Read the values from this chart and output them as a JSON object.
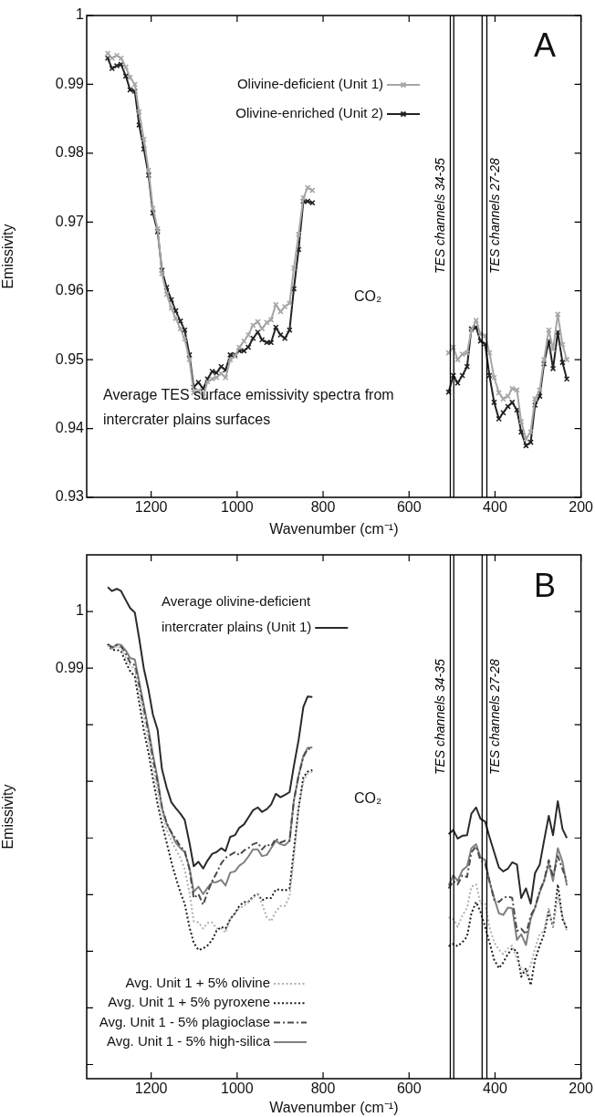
{
  "chart_data": [
    {
      "type": "line",
      "xlabel": "Wavenumber (cm⁻¹)",
      "ylabel": "Emissivity",
      "x": [
        1301,
        1291,
        1280,
        1270,
        1259,
        1249,
        1238,
        1228,
        1217,
        1206,
        1196,
        1185,
        1175,
        1164,
        1153,
        1143,
        1132,
        1122,
        1111,
        1101,
        1090,
        1079,
        1069,
        1058,
        1048,
        1037,
        1027,
        1016,
        1005,
        995,
        984,
        974,
        963,
        952,
        942,
        931,
        921,
        910,
        899,
        889,
        878,
        868,
        857,
        846,
        836,
        825,
        660,
        508,
        497,
        487,
        476,
        465,
        455,
        444,
        434,
        423,
        413,
        402,
        391,
        381,
        370,
        360,
        349,
        339,
        328,
        317,
        307,
        296,
        286,
        275,
        265,
        254,
        243,
        233
      ],
      "xlim": [
        1350,
        200
      ],
      "xticks": [
        1200,
        1000,
        800,
        600,
        400,
        200
      ],
      "ylim": [
        0.93,
        1
      ],
      "yticks": [
        0.93,
        0.94,
        0.95,
        0.96,
        0.97,
        0.98,
        0.99,
        1
      ],
      "marker": "cross",
      "legend": "top",
      "ref_lines": [
        {
          "axis": "x",
          "value": 504,
          "label": "TES channels 34-35"
        },
        {
          "axis": "x",
          "value": 496
        },
        {
          "axis": "x",
          "value": 430
        },
        {
          "axis": "x",
          "value": 419,
          "label": "TES channels 27-28"
        }
      ],
      "series": [
        {
          "name": "Olivine-deficient (Unit 1)",
          "color": "#a6a6a6",
          "values": [
            0.9945,
            0.9938,
            0.9942,
            0.9938,
            0.9925,
            0.991,
            0.99,
            0.986,
            0.982,
            0.9775,
            0.972,
            0.969,
            0.9625,
            0.9595,
            0.9575,
            0.956,
            0.9545,
            0.953,
            0.95,
            0.9452,
            0.9455,
            0.9446,
            0.9468,
            0.9472,
            0.9474,
            0.948,
            0.9474,
            0.95,
            0.9505,
            0.9518,
            0.9527,
            0.9536,
            0.955,
            0.9555,
            0.9545,
            0.9554,
            0.9558,
            0.958,
            0.957,
            0.9577,
            0.9582,
            0.9633,
            0.9682,
            0.9735,
            0.975,
            0.9746,
            null,
            0.951,
            0.9518,
            0.95,
            0.9508,
            0.951,
            0.9543,
            0.9557,
            0.9537,
            0.9535,
            0.951,
            0.9474,
            0.9452,
            0.9443,
            0.9447,
            0.9458,
            0.9456,
            0.941,
            0.9385,
            0.9395,
            0.9443,
            0.9456,
            0.95,
            0.9543,
            0.9515,
            0.9566,
            0.9522,
            0.95
          ]
        },
        {
          "name": "Olivine-enriched (Unit 2)",
          "color": "#222222",
          "values": [
            0.9938,
            0.9923,
            0.9927,
            0.9929,
            0.9912,
            0.9892,
            0.989,
            0.9841,
            0.9806,
            0.9768,
            0.9713,
            0.9686,
            0.963,
            0.9605,
            0.9587,
            0.9571,
            0.9556,
            0.9543,
            0.9507,
            0.946,
            0.9467,
            0.9458,
            0.9472,
            0.9483,
            0.9481,
            0.949,
            0.9485,
            0.9507,
            0.9507,
            0.9513,
            0.9513,
            0.9518,
            0.9531,
            0.954,
            0.9529,
            0.9525,
            0.9525,
            0.9547,
            0.9536,
            0.9531,
            0.9543,
            0.9603,
            0.966,
            0.973,
            0.973,
            0.9728,
            null,
            0.9453,
            0.9477,
            0.9466,
            0.9477,
            0.949,
            0.9545,
            0.9547,
            0.9527,
            0.9523,
            0.9477,
            0.9438,
            0.9414,
            0.9423,
            0.9432,
            0.9438,
            0.9427,
            0.9395,
            0.9375,
            0.938,
            0.9434,
            0.9447,
            0.9494,
            0.9527,
            0.9487,
            0.954,
            0.9496,
            0.9472
          ]
        }
      ],
      "annotations": [
        "A",
        "CO₂",
        "Average TES surface emissivity spectra from intercrater plains surfaces"
      ]
    },
    {
      "type": "line",
      "xlabel": "Wavenumber (cm⁻¹)",
      "ylabel": "Emissivity",
      "x": [
        1301,
        1291,
        1280,
        1270,
        1259,
        1249,
        1238,
        1228,
        1217,
        1206,
        1196,
        1185,
        1175,
        1164,
        1153,
        1143,
        1132,
        1122,
        1111,
        1101,
        1090,
        1079,
        1069,
        1058,
        1048,
        1037,
        1027,
        1016,
        1005,
        995,
        984,
        974,
        963,
        952,
        942,
        931,
        921,
        910,
        899,
        889,
        878,
        868,
        857,
        846,
        836,
        825,
        660,
        508,
        497,
        487,
        476,
        465,
        455,
        444,
        434,
        423,
        413,
        402,
        391,
        381,
        370,
        360,
        349,
        339,
        328,
        317,
        307,
        296,
        286,
        275,
        265,
        254,
        243,
        233
      ],
      "xlim": [
        1350,
        200
      ],
      "xticks": [
        1200,
        1000,
        800,
        600,
        400,
        200
      ],
      "ylim": [
        0.9175,
        1.01
      ],
      "yticks": [
        {
          "value": 0.92,
          "label": null
        },
        {
          "value": 0.93,
          "label": null
        },
        {
          "value": 0.94,
          "label": null
        },
        {
          "value": 0.95,
          "label": null
        },
        {
          "value": 0.96,
          "label": null
        },
        {
          "value": 0.97,
          "label": null
        },
        {
          "value": 0.98,
          "label": null
        },
        0.99,
        1
      ],
      "legend": "bottom left",
      "series": [
        {
          "name": "Average olivine-deficient intercrater plains (Unit 1)",
          "color": "#2a2a2a",
          "line_style": "solid",
          "values": [
            1.0043,
            1.0036,
            1.004,
            1.0036,
            1.002,
            1.0006,
            0.9998,
            0.9953,
            0.9899,
            0.9861,
            0.9818,
            0.9791,
            0.9722,
            0.9689,
            0.9663,
            0.9653,
            0.9643,
            0.9632,
            0.9592,
            0.955,
            0.9558,
            0.9546,
            0.956,
            0.9572,
            0.9575,
            0.9582,
            0.9577,
            0.9602,
            0.9605,
            0.9618,
            0.9624,
            0.9636,
            0.9649,
            0.9654,
            0.9646,
            0.9651,
            0.9659,
            0.9678,
            0.9672,
            0.9676,
            0.9681,
            0.9727,
            0.9773,
            0.9831,
            0.985,
            0.9849,
            null,
            0.9607,
            0.9614,
            0.9599,
            0.9604,
            0.9605,
            0.9643,
            0.9654,
            0.9634,
            0.9629,
            0.9602,
            0.9575,
            0.9548,
            0.9541,
            0.9546,
            0.9557,
            0.9553,
            0.9494,
            0.9511,
            0.9484,
            0.9538,
            0.9553,
            0.9595,
            0.9639,
            0.9605,
            0.9665,
            0.9616,
            0.96
          ]
        },
        {
          "name": "Avg. Unit 1 + 5% olivine",
          "color": "#b0b0b0",
          "line_style": "dotted",
          "values": [
            0.994,
            0.9934,
            0.9938,
            0.9935,
            0.9918,
            0.9905,
            0.9898,
            0.9858,
            0.9815,
            0.977,
            0.9725,
            0.9683,
            0.9645,
            0.9615,
            0.9595,
            0.958,
            0.9565,
            0.9545,
            0.9504,
            0.9453,
            0.9451,
            0.944,
            0.945,
            0.9451,
            0.944,
            0.944,
            0.9433,
            0.9457,
            0.9467,
            0.9476,
            0.948,
            0.9487,
            0.9494,
            0.9501,
            0.9484,
            0.946,
            0.9453,
            0.947,
            0.948,
            0.948,
            0.9497,
            0.9565,
            0.9653,
            0.97,
            0.9714,
            0.9717,
            null,
            0.946,
            0.9457,
            0.9443,
            0.9463,
            0.9477,
            0.9514,
            0.9518,
            0.9484,
            0.9484,
            0.9443,
            0.9416,
            0.9403,
            0.9395,
            0.9405,
            0.941,
            0.9385,
            0.937,
            0.936,
            0.9375,
            0.9405,
            0.943,
            0.9436,
            0.9477,
            0.9443,
            0.9497,
            0.9463,
            0.9436
          ]
        },
        {
          "name": "Avg. Unit 1 + 5% pyroxene",
          "color": "#1a1a1a",
          "line_style": "dotted",
          "values": [
            0.9942,
            0.9932,
            0.9932,
            0.993,
            0.991,
            0.9895,
            0.9885,
            0.984,
            0.979,
            0.975,
            0.9705,
            0.966,
            0.9626,
            0.9592,
            0.9558,
            0.9531,
            0.9504,
            0.9484,
            0.9443,
            0.9415,
            0.9402,
            0.9405,
            0.941,
            0.942,
            0.9436,
            0.9443,
            0.944,
            0.9457,
            0.9467,
            0.948,
            0.9487,
            0.9487,
            0.9497,
            0.9501,
            0.949,
            0.9494,
            0.9494,
            0.9509,
            0.9509,
            0.9507,
            0.9511,
            0.9578,
            0.9653,
            0.9707,
            0.9717,
            0.972,
            null,
            0.9409,
            0.9413,
            0.9409,
            0.9416,
            0.9426,
            0.9467,
            0.9487,
            0.947,
            0.9443,
            0.9416,
            0.9385,
            0.937,
            0.938,
            0.9395,
            0.9405,
            0.94,
            0.9355,
            0.937,
            0.934,
            0.9385,
            0.941,
            0.943,
            0.947,
            0.9443,
            0.9518,
            0.9457,
            0.944
          ]
        },
        {
          "name": "Avg. Unit 1 - 5% plagioclase",
          "color": "#4a4a4a",
          "line_style": "dashdot",
          "values": [
            0.9942,
            0.9937,
            0.994,
            0.9938,
            0.9925,
            0.991,
            0.9905,
            0.987,
            0.9828,
            0.9785,
            0.974,
            0.9698,
            0.9655,
            0.9626,
            0.961,
            0.9599,
            0.9585,
            0.9578,
            0.9545,
            0.9494,
            0.9501,
            0.9482,
            0.9504,
            0.9524,
            0.9538,
            0.9555,
            0.9565,
            0.957,
            0.9575,
            0.957,
            0.9578,
            0.9582,
            0.9589,
            0.9592,
            0.958,
            0.9589,
            0.9585,
            0.9599,
            0.9592,
            0.9595,
            0.9595,
            0.9666,
            0.971,
            0.9743,
            0.9757,
            0.9758,
            null,
            0.9511,
            0.9524,
            0.9518,
            0.9534,
            0.9531,
            0.9575,
            0.9585,
            0.9561,
            0.9555,
            0.9524,
            0.9491,
            0.9487,
            0.9494,
            0.9497,
            0.9494,
            0.9436,
            0.944,
            0.943,
            0.9463,
            0.9477,
            0.9507,
            0.9524,
            0.9561,
            0.9531,
            0.9568,
            0.9545,
            0.9524
          ]
        },
        {
          "name": "Avg. Unit 1 - 5% high-silica",
          "color": "#808080",
          "line_style": "solid",
          "values": [
            0.9942,
            0.9935,
            0.9942,
            0.9941,
            0.9931,
            0.9918,
            0.9915,
            0.9877,
            0.9834,
            0.9791,
            0.9748,
            0.9705,
            0.9653,
            0.9626,
            0.9609,
            0.9592,
            0.9582,
            0.9575,
            0.9548,
            0.9505,
            0.9514,
            0.9501,
            0.9512,
            0.9522,
            0.9522,
            0.9526,
            0.9516,
            0.9539,
            0.9541,
            0.9551,
            0.9557,
            0.9567,
            0.958,
            0.958,
            0.9568,
            0.957,
            0.9582,
            0.9595,
            0.9589,
            0.9587,
            0.9595,
            0.9666,
            0.971,
            0.9745,
            0.9759,
            0.976,
            null,
            0.9516,
            0.9534,
            0.9524,
            0.9543,
            0.955,
            0.9582,
            0.9589,
            0.9566,
            0.9561,
            0.9524,
            0.9494,
            0.9467,
            0.9464,
            0.9477,
            0.9476,
            0.942,
            0.943,
            0.9411,
            0.9457,
            0.9477,
            0.9504,
            0.9524,
            0.9555,
            0.9524,
            0.9582,
            0.9558,
            0.9516
          ]
        }
      ],
      "ref_lines": [
        {
          "axis": "x",
          "value": 504,
          "label": "TES channels 34-35"
        },
        {
          "axis": "x",
          "value": 496
        },
        {
          "axis": "x",
          "value": 430
        },
        {
          "axis": "x",
          "value": 419,
          "label": "TES channels 27-28"
        }
      ],
      "annotations": [
        "B",
        "CO₂"
      ]
    }
  ]
}
